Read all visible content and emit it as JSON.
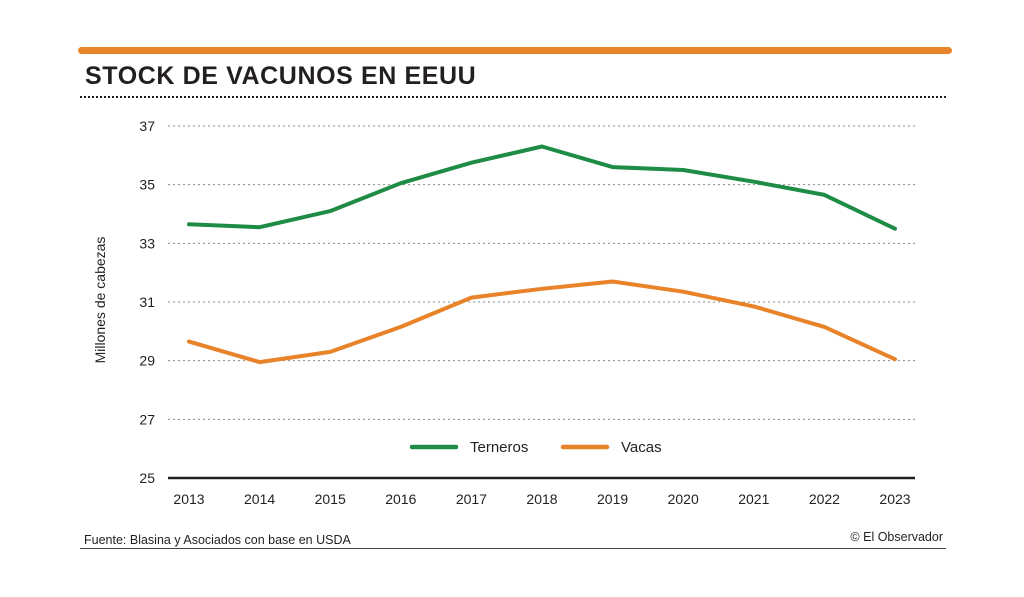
{
  "header": {
    "title": "STOCK DE VACUNOS EN EEUU"
  },
  "footer": {
    "source": "Fuente: Blasina y Asociados con base en USDA",
    "credit": "© El Observador"
  },
  "colors": {
    "accent": "#e8832a",
    "terneros": "#1e8c45",
    "vacas": "#e8832a",
    "grid": "#8a8a8a",
    "axis": "#231f20"
  },
  "chart_data": {
    "type": "line",
    "title": "STOCK DE VACUNOS EN EEUU",
    "xlabel": "",
    "ylabel": "Millones de cabezas",
    "categories": [
      "2013",
      "2014",
      "2015",
      "2016",
      "2017",
      "2018",
      "2019",
      "2020",
      "2021",
      "2022",
      "2023"
    ],
    "series": [
      {
        "name": "Terneros",
        "color": "#1e8c45",
        "values": [
          33.65,
          33.55,
          34.1,
          35.05,
          35.75,
          36.3,
          35.6,
          35.5,
          35.1,
          34.65,
          33.5
        ]
      },
      {
        "name": "Vacas",
        "color": "#e8832a",
        "values": [
          29.65,
          28.95,
          29.3,
          30.15,
          31.15,
          31.45,
          31.7,
          31.35,
          30.85,
          30.15,
          29.05
        ]
      }
    ],
    "ylim": [
      25,
      37
    ],
    "yticks": [
      "25",
      "27",
      "29",
      "31",
      "33",
      "35",
      "37"
    ],
    "grid": true,
    "legend": "bottom-center"
  }
}
